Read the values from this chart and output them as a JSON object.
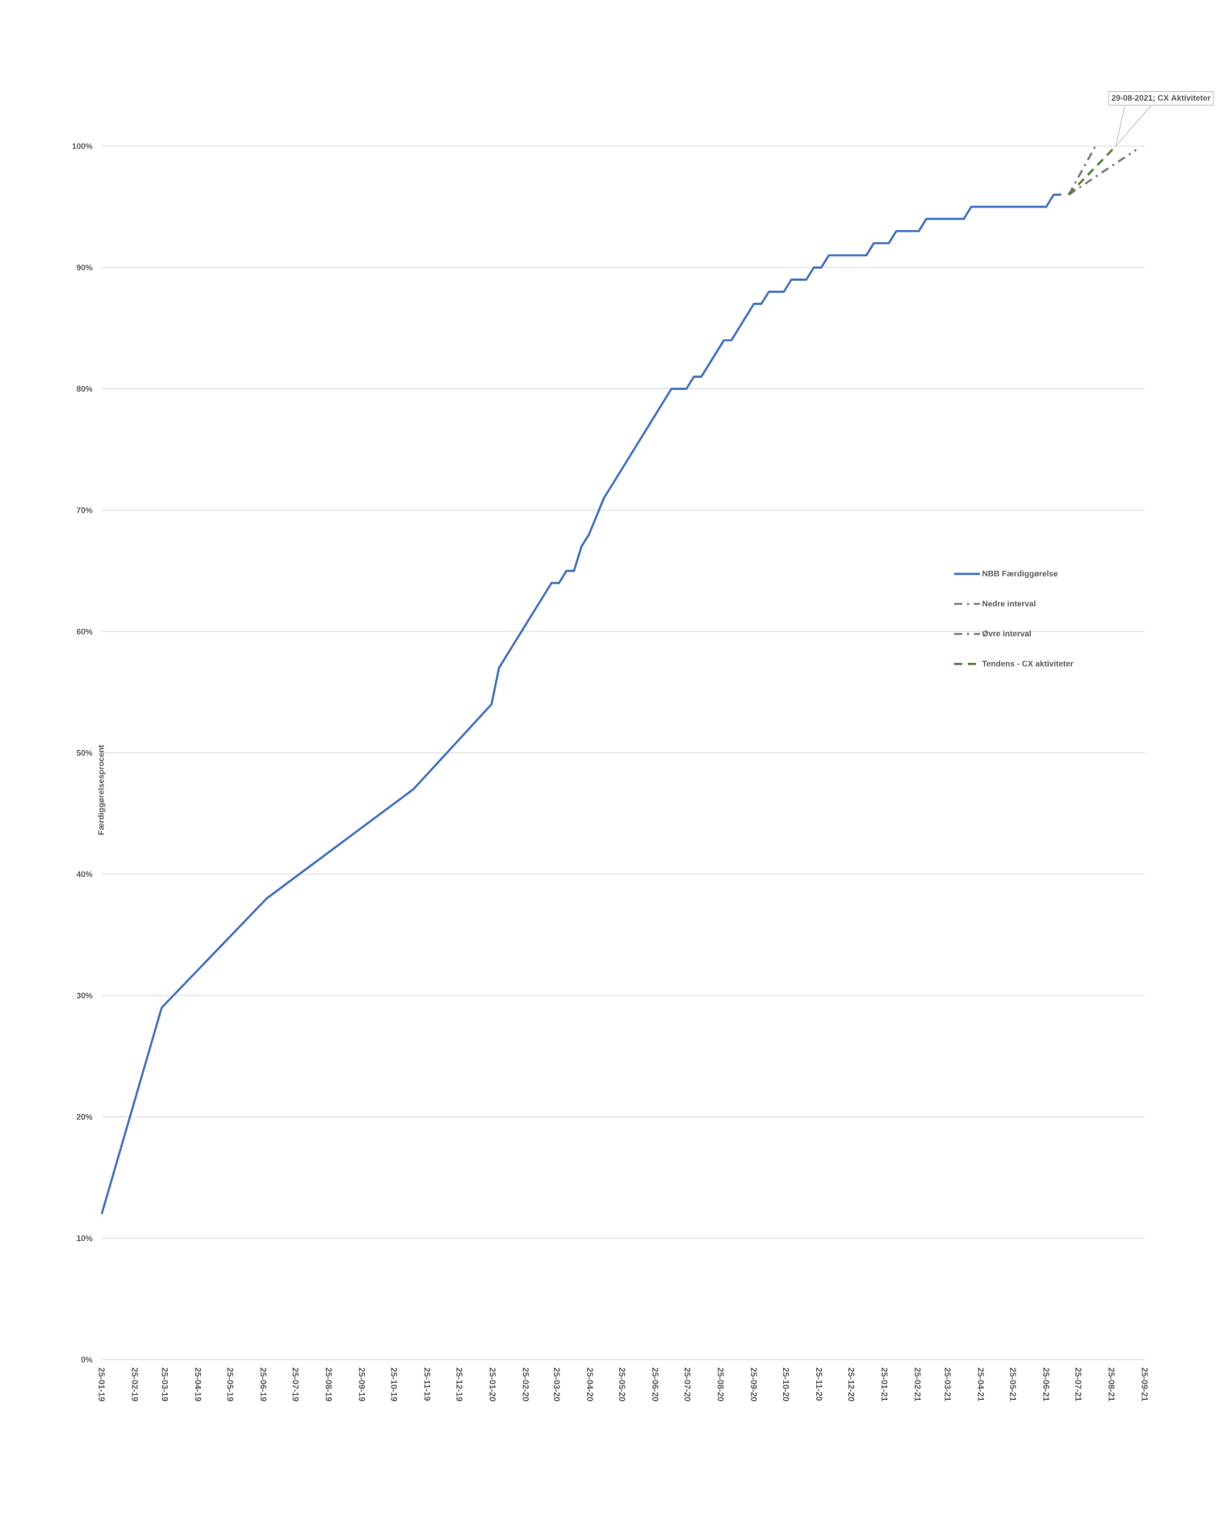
{
  "chart_data": {
    "type": "line",
    "ylabel": "Færdiggørelsesprocent",
    "annotations": [
      "29-08-2021; CX Aktiviteter"
    ],
    "xlim": [
      "2019-01-25",
      "2021-09-25"
    ],
    "xticks": [
      {
        "value": "2019-01-25",
        "label": "25-01-19"
      },
      {
        "value": "2019-02-25",
        "label": "25-02-19"
      },
      {
        "value": "2019-03-25",
        "label": "25-03-19"
      },
      {
        "value": "2019-04-25",
        "label": "25-04-19"
      },
      {
        "value": "2019-05-25",
        "label": "25-05-19"
      },
      {
        "value": "2019-06-25",
        "label": "25-06-19"
      },
      {
        "value": "2019-07-25",
        "label": "25-07-19"
      },
      {
        "value": "2019-08-25",
        "label": "25-08-19"
      },
      {
        "value": "2019-09-25",
        "label": "25-09-19"
      },
      {
        "value": "2019-10-25",
        "label": "25-10-19"
      },
      {
        "value": "2019-11-25",
        "label": "25-11-19"
      },
      {
        "value": "2019-12-25",
        "label": "25-12-19"
      },
      {
        "value": "2020-01-25",
        "label": "25-01-20"
      },
      {
        "value": "2020-02-25",
        "label": "25-02-20"
      },
      {
        "value": "2020-03-25",
        "label": "25-03-20"
      },
      {
        "value": "2020-04-25",
        "label": "25-04-20"
      },
      {
        "value": "2020-05-25",
        "label": "25-05-20"
      },
      {
        "value": "2020-06-25",
        "label": "25-06-20"
      },
      {
        "value": "2020-07-25",
        "label": "25-07-20"
      },
      {
        "value": "2020-08-25",
        "label": "25-08-20"
      },
      {
        "value": "2020-09-25",
        "label": "25-09-20"
      },
      {
        "value": "2020-10-25",
        "label": "25-10-20"
      },
      {
        "value": "2020-11-25",
        "label": "25-11-20"
      },
      {
        "value": "2020-12-25",
        "label": "25-12-20"
      },
      {
        "value": "2021-01-25",
        "label": "25-01-21"
      },
      {
        "value": "2021-02-25",
        "label": "25-02-21"
      },
      {
        "value": "2021-03-25",
        "label": "25-03-21"
      },
      {
        "value": "2021-04-25",
        "label": "25-04-21"
      },
      {
        "value": "2021-05-25",
        "label": "25-05-21"
      },
      {
        "value": "2021-06-25",
        "label": "25-06-21"
      },
      {
        "value": "2021-07-25",
        "label": "25-07-21"
      },
      {
        "value": "2021-08-25",
        "label": "25-08-21"
      },
      {
        "value": "2021-09-25",
        "label": "25-09-21"
      }
    ],
    "ylim": [
      0,
      100
    ],
    "yticks": [
      {
        "value": 0,
        "label": "0%"
      },
      {
        "value": 10,
        "label": "10%"
      },
      {
        "value": 20,
        "label": "20%"
      },
      {
        "value": 30,
        "label": "30%"
      },
      {
        "value": 40,
        "label": "40%"
      },
      {
        "value": 50,
        "label": "50%"
      },
      {
        "value": 60,
        "label": "60%"
      },
      {
        "value": 70,
        "label": "70%"
      },
      {
        "value": 80,
        "label": "80%"
      },
      {
        "value": 90,
        "label": "90%"
      },
      {
        "value": 100,
        "label": "100%"
      }
    ],
    "grid": "y",
    "legend": "right",
    "series": [
      {
        "name": "NBB Færdiggørelse",
        "color": "#4472c4",
        "line_style": "solid",
        "x": [
          "2019-01-25",
          "2019-03-22",
          "2019-06-28",
          "2019-11-12",
          "2020-01-24",
          "2020-01-31",
          "2020-03-20",
          "2020-03-27",
          "2020-04-03",
          "2020-04-10",
          "2020-04-17",
          "2020-04-24",
          "2020-05-08",
          "2020-07-10",
          "2020-07-24",
          "2020-07-31",
          "2020-08-07",
          "2020-08-28",
          "2020-09-04",
          "2020-09-25",
          "2020-10-02",
          "2020-10-09",
          "2020-10-23",
          "2020-10-30",
          "2020-11-13",
          "2020-11-20",
          "2020-11-27",
          "2020-12-04",
          "2021-01-08",
          "2021-01-15",
          "2021-01-29",
          "2021-02-05",
          "2021-02-26",
          "2021-03-05",
          "2021-04-09",
          "2021-04-16",
          "2021-06-25",
          "2021-07-02",
          "2021-07-09"
        ],
        "values": [
          12,
          29,
          38,
          47,
          54,
          57,
          64,
          64,
          65,
          65,
          67,
          68,
          71,
          80,
          80,
          81,
          81,
          84,
          84,
          87,
          87,
          88,
          88,
          89,
          89,
          90,
          90,
          91,
          91,
          92,
          92,
          93,
          93,
          94,
          94,
          95,
          95,
          96,
          96
        ]
      },
      {
        "name": "Nedre interval",
        "color": "#7f7f7f",
        "line_style": "dashdot",
        "x": [
          "2021-07-16",
          "2021-09-17"
        ],
        "values": [
          96,
          99.7
        ]
      },
      {
        "name": "Øvre interval",
        "color": "#7f7f7f",
        "line_style": "dashdot",
        "x": [
          "2021-07-16",
          "2021-08-10"
        ],
        "values": [
          96,
          100
        ]
      },
      {
        "name": "Tendens - CX aktiviteter",
        "color": "#548235",
        "line_style": "dashed",
        "x": [
          "2021-07-16",
          "2021-08-29"
        ],
        "values": [
          96,
          100
        ]
      }
    ]
  }
}
